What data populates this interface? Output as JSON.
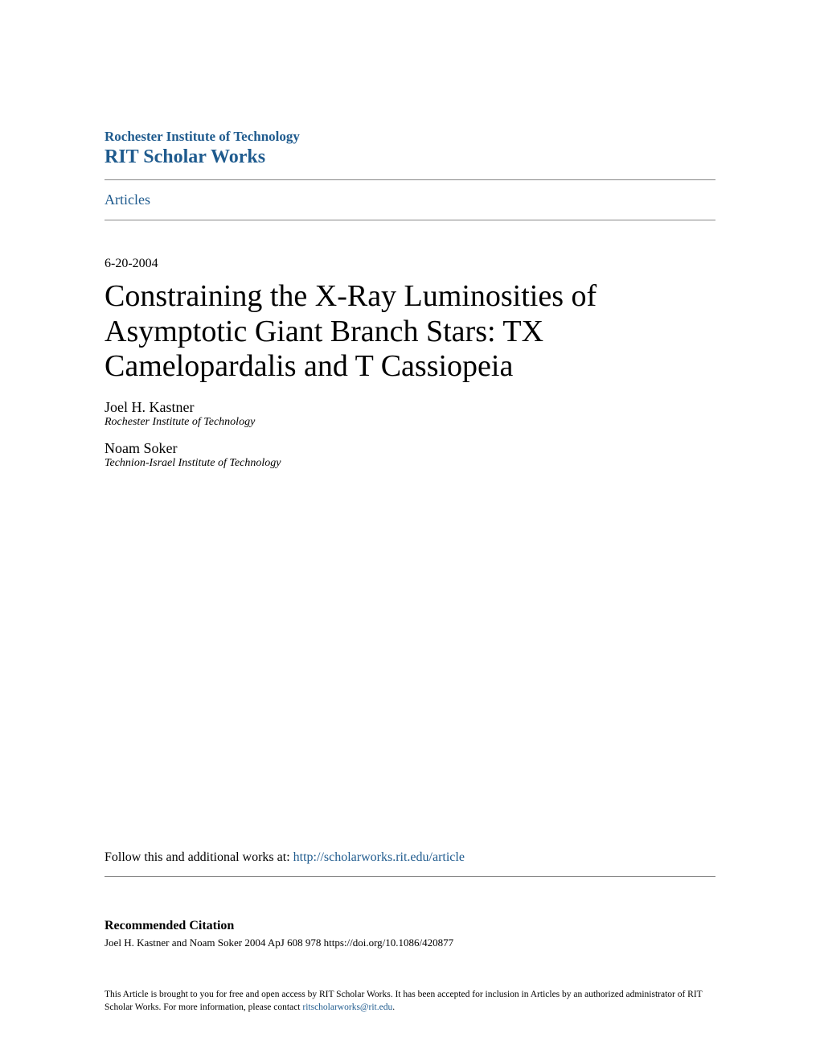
{
  "header": {
    "institution": "Rochester Institute of Technology",
    "repository": "RIT Scholar Works",
    "section_link": "Articles"
  },
  "document": {
    "date": "6-20-2004",
    "title": "Constraining the X-Ray Luminosities of Asymptotic Giant Branch Stars: TX Camelopardalis and T Cassiopeia",
    "authors": [
      {
        "name": "Joel H. Kastner",
        "affiliation": "Rochester Institute of Technology"
      },
      {
        "name": "Noam Soker",
        "affiliation": "Technion-Israel Institute of Technology"
      }
    ]
  },
  "follow": {
    "prefix": "Follow this and additional works at: ",
    "link_text": "http://scholarworks.rit.edu/article"
  },
  "citation": {
    "heading": "Recommended Citation",
    "text": "Joel H. Kastner and Noam Soker 2004 ApJ 608 978 https://doi.org/10.1086/420877"
  },
  "footer": {
    "text_part1": "This Article is brought to you for free and open access by RIT Scholar Works. It has been accepted for inclusion in Articles by an authorized administrator of RIT Scholar Works. For more information, please contact ",
    "link_text": "ritscholarworks@rit.edu",
    "text_part2": "."
  },
  "colors": {
    "link_color": "#1f5b8e",
    "text_color": "#000000",
    "background": "#ffffff",
    "hr_color": "#888888"
  }
}
